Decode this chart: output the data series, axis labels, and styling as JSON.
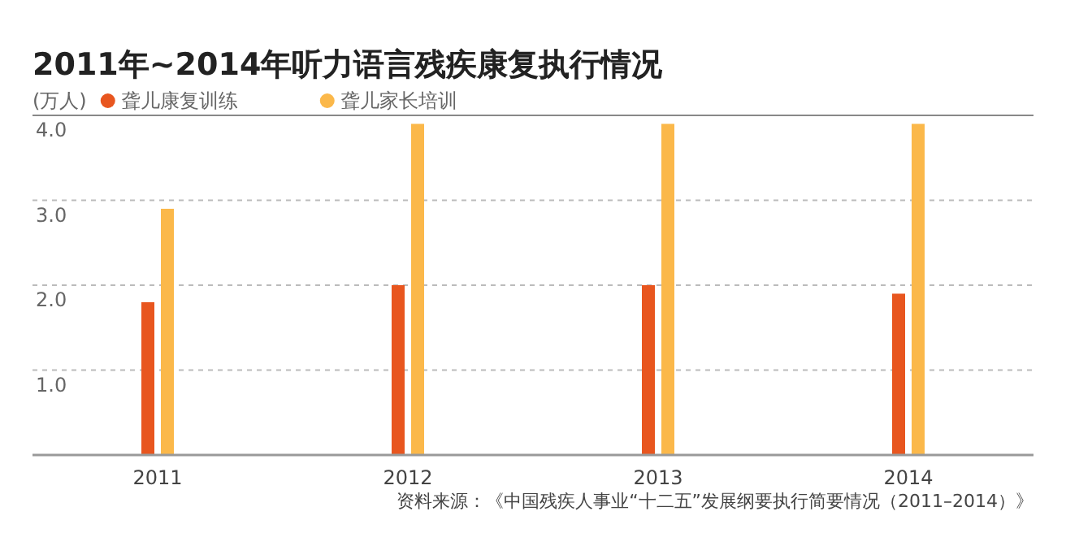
{
  "chart_data": {
    "type": "bar",
    "title": "2011年~2014年听力语言残疾康复执行情况",
    "ylabel": "(万人)",
    "categories": [
      "2011",
      "2012",
      "2013",
      "2014"
    ],
    "series": [
      {
        "name": "聋儿康复训练",
        "color": "#e8561f",
        "values": [
          1.8,
          2.0,
          2.0,
          1.9
        ]
      },
      {
        "name": "聋儿家长培训",
        "color": "#fbb84a",
        "values": [
          2.9,
          3.9,
          3.9,
          3.9
        ]
      }
    ],
    "ylim": [
      0,
      4
    ],
    "yticks": [
      {
        "value": 0,
        "label": null
      },
      {
        "value": 1,
        "label": "1.0"
      },
      {
        "value": 2,
        "label": "2.0"
      },
      {
        "value": 3,
        "label": "3.0"
      },
      {
        "value": 4,
        "label": "4.0"
      }
    ],
    "grid": "y",
    "legend": "top left",
    "annotations": [
      "资料来源：《中国残疾人事业“十二五”发展纲要执行简要情况（2011–2014）》"
    ]
  }
}
